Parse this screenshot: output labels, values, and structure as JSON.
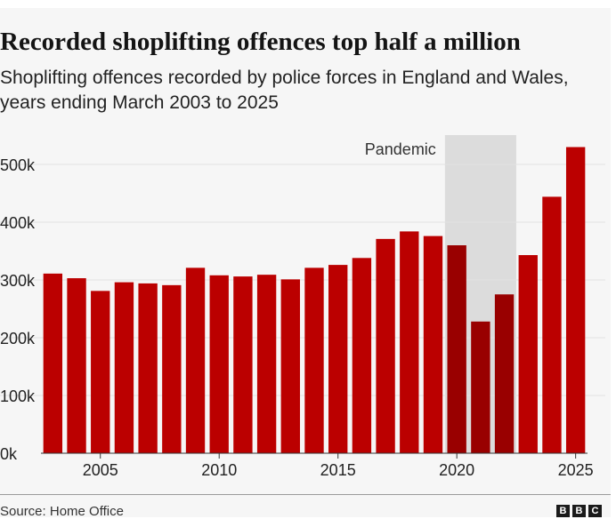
{
  "title": "Recorded shoplifting offences top half a million",
  "subtitle": "Shoplifting offences recorded by police forces in England and Wales, years ending March 2003 to 2025",
  "source": "Source: Home Office",
  "logo": [
    "B",
    "B",
    "C"
  ],
  "colors": {
    "bar": "#bb0000",
    "bar_highlight": "#990000",
    "shade": "#dcdcdc"
  },
  "chart_data": {
    "type": "bar",
    "title": "Recorded shoplifting offences top half a million",
    "subtitle": "Shoplifting offences recorded by police forces in England and Wales, years ending March 2003 to 2025",
    "xlabel": "",
    "ylabel": "",
    "x": [
      2003,
      2004,
      2005,
      2006,
      2007,
      2008,
      2009,
      2010,
      2011,
      2012,
      2013,
      2014,
      2015,
      2016,
      2017,
      2018,
      2019,
      2020,
      2021,
      2022,
      2023,
      2024,
      2025
    ],
    "values": [
      311000,
      303000,
      281000,
      296000,
      294000,
      291000,
      321000,
      308000,
      306000,
      309000,
      301000,
      321000,
      326000,
      338000,
      371000,
      384000,
      376000,
      360000,
      228000,
      275000,
      343000,
      444000,
      530000
    ],
    "highlighted_years": [
      2020,
      2021,
      2022
    ],
    "ylim": [
      0,
      500000
    ],
    "yticks": [
      0,
      100000,
      200000,
      300000,
      400000,
      500000
    ],
    "ytick_labels": [
      "0k",
      "100k",
      "200k",
      "300k",
      "400k",
      "500k"
    ],
    "xticks": [
      2005,
      2010,
      2015,
      2020,
      2025
    ],
    "xtick_labels": [
      "2005",
      "2010",
      "2015",
      "2020",
      "2025"
    ],
    "annotation": {
      "label": "Pandemic",
      "from": 2020,
      "to": 2022
    },
    "grid": true
  }
}
